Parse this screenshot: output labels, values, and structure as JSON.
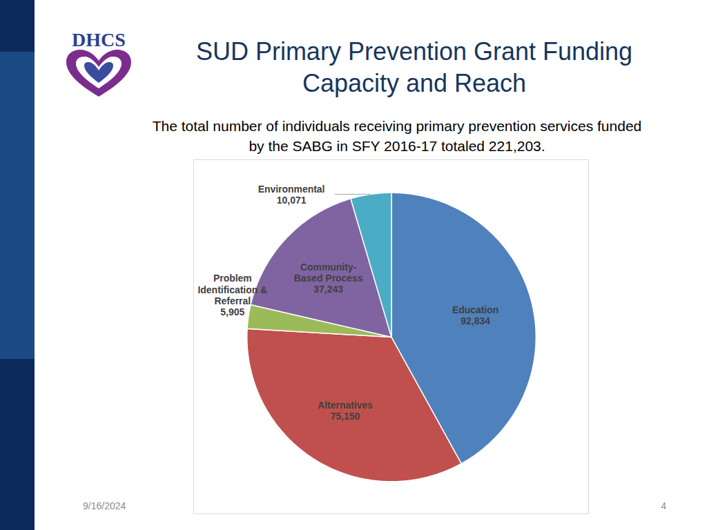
{
  "header": {
    "logo": "DHCS",
    "title": "SUD Primary Prevention Grant Funding Capacity and Reach",
    "subtitle": "The total number of individuals receiving primary prevention services funded by the SABG in SFY 2016-17 totaled 221,203."
  },
  "chart_data": {
    "type": "pie",
    "categories": [
      "Education",
      "Alternatives",
      "Problem Identification & Referral",
      "Community-Based Process",
      "Environmental"
    ],
    "values": [
      92834,
      75150,
      5905,
      37243,
      10071
    ],
    "value_labels": [
      "92,834",
      "75,150",
      "5,905",
      "37,243",
      "10,071"
    ],
    "colors": [
      "#4f81bd",
      "#c0504d",
      "#9bbb59",
      "#8064a2",
      "#4bacc6"
    ],
    "data_labels": true
  },
  "footer": {
    "date": "9/16/2024",
    "page": 4
  }
}
